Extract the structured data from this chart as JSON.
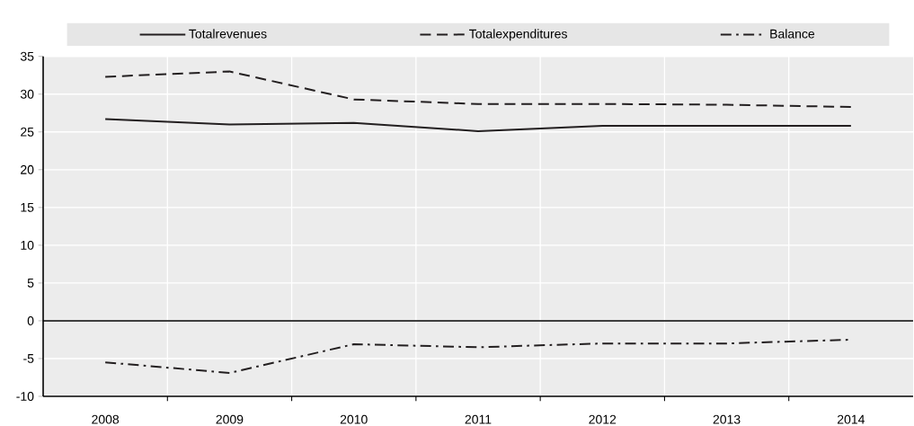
{
  "chart_data": {
    "type": "line",
    "categories": [
      "2008",
      "2009",
      "2010",
      "2011",
      "2012",
      "2013",
      "2014"
    ],
    "series": [
      {
        "name": "Totalrevenues",
        "color": "#231f20",
        "line_style": "solid",
        "values": [
          26.7,
          26.0,
          26.2,
          25.1,
          25.8,
          25.8,
          25.8
        ]
      },
      {
        "name": "Totalexpenditures",
        "color": "#231f20",
        "line_style": "dashed",
        "values": [
          32.3,
          33.0,
          29.3,
          28.7,
          28.7,
          28.6,
          28.3
        ]
      },
      {
        "name": "Balance",
        "color": "#231f20",
        "line_style": "dashdot",
        "values": [
          -5.5,
          -6.9,
          -3.1,
          -3.5,
          -3.0,
          -3.0,
          -2.5
        ]
      }
    ],
    "ylim": [
      -10,
      35
    ],
    "yticks": [
      -10,
      -5,
      0,
      5,
      10,
      15,
      20,
      25,
      30,
      35
    ],
    "ref_lines": [
      {
        "axis": "y",
        "value": 0,
        "color": "#000000"
      }
    ],
    "grid": true,
    "legend": "top",
    "marker": "none"
  }
}
